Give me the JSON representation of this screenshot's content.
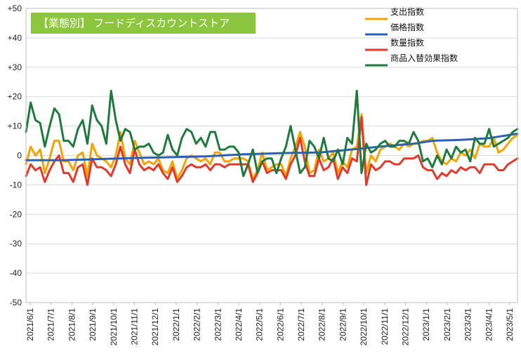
{
  "chart_data": {
    "type": "line",
    "title": "【業態別】 フードディスカウントストア",
    "title_bg": "#8cc63f",
    "ylim": [
      -50,
      50
    ],
    "yticks": [
      "+50",
      "+40",
      "+30",
      "+20",
      "+10",
      "0",
      "-10",
      "-20",
      "-30",
      "-40",
      "-50"
    ],
    "ytick_values": [
      50,
      40,
      30,
      20,
      10,
      0,
      -10,
      -20,
      -30,
      -40,
      -50
    ],
    "xlabels": [
      "2021/6/1",
      "2021/7/1",
      "2021/8/1",
      "2021/9/1",
      "2021/10/1",
      "2021/11/1",
      "2021/12/1",
      "2022/1/1",
      "2022/2/1",
      "2022/3/1",
      "2022/4/1",
      "2022/5/1",
      "2022/6/1",
      "2022/7/1",
      "2022/8/1",
      "2022/9/1",
      "2022/10/1",
      "2022/11/1",
      "2022/12/1",
      "2023/1/1",
      "2023/2/1",
      "2023/3/1",
      "2023/4/1",
      "2023/5/1"
    ],
    "n_points": 105,
    "series": [
      {
        "name": "支出指数",
        "color": "#f5a300",
        "anchors": [
          [
            0,
            -3
          ],
          [
            1,
            3
          ],
          [
            2,
            0
          ],
          [
            3,
            2
          ],
          [
            4,
            -6
          ],
          [
            5,
            -1
          ],
          [
            6,
            5
          ],
          [
            7,
            5
          ],
          [
            8,
            -2
          ],
          [
            9,
            -2
          ],
          [
            10,
            -5
          ],
          [
            11,
            0
          ],
          [
            12,
            1
          ],
          [
            13,
            -7
          ],
          [
            14,
            4
          ],
          [
            15,
            0
          ],
          [
            16,
            -1
          ],
          [
            17,
            -2
          ],
          [
            18,
            -4
          ],
          [
            19,
            0
          ],
          [
            20,
            8
          ],
          [
            21,
            -1
          ],
          [
            22,
            -3
          ],
          [
            23,
            5
          ],
          [
            24,
            1
          ],
          [
            25,
            -3
          ],
          [
            26,
            -2
          ],
          [
            27,
            -3
          ],
          [
            28,
            -1
          ],
          [
            29,
            -5
          ],
          [
            30,
            -6
          ],
          [
            31,
            -2
          ],
          [
            32,
            -8
          ],
          [
            33,
            -5
          ],
          [
            34,
            -1
          ],
          [
            35,
            0
          ],
          [
            36,
            -1
          ],
          [
            37,
            -2
          ],
          [
            38,
            -1
          ],
          [
            39,
            -3
          ],
          [
            40,
            1
          ],
          [
            41,
            1
          ],
          [
            42,
            -2
          ],
          [
            43,
            -2
          ],
          [
            44,
            -1
          ],
          [
            45,
            -1
          ],
          [
            46,
            -1
          ],
          [
            47,
            -2
          ],
          [
            48,
            -8
          ],
          [
            49,
            -5
          ],
          [
            50,
            1
          ],
          [
            51,
            -5
          ],
          [
            52,
            -4
          ],
          [
            53,
            -3
          ],
          [
            54,
            -3
          ],
          [
            55,
            -7
          ],
          [
            56,
            -1
          ],
          [
            57,
            3
          ],
          [
            58,
            8
          ],
          [
            59,
            3
          ],
          [
            60,
            -6
          ],
          [
            61,
            -5
          ],
          [
            62,
            2
          ],
          [
            63,
            -2
          ],
          [
            64,
            -1
          ],
          [
            65,
            1
          ],
          [
            66,
            -6
          ],
          [
            67,
            -2
          ],
          [
            68,
            -4
          ],
          [
            69,
            2
          ],
          [
            70,
            3
          ],
          [
            71,
            14
          ],
          [
            72,
            -6
          ],
          [
            73,
            0
          ],
          [
            74,
            -2
          ],
          [
            75,
            2
          ],
          [
            76,
            3
          ],
          [
            77,
            4
          ],
          [
            78,
            3
          ],
          [
            79,
            2
          ],
          [
            80,
            4
          ],
          [
            81,
            3
          ],
          [
            82,
            4
          ],
          [
            83,
            4
          ],
          [
            84,
            5
          ],
          [
            85,
            5
          ],
          [
            86,
            6
          ],
          [
            87,
            1
          ],
          [
            88,
            -2
          ],
          [
            89,
            -3
          ],
          [
            90,
            -1
          ],
          [
            91,
            -2
          ],
          [
            92,
            1
          ],
          [
            93,
            0
          ],
          [
            94,
            2
          ],
          [
            95,
            -1
          ],
          [
            96,
            4
          ],
          [
            97,
            3
          ],
          [
            98,
            3
          ],
          [
            99,
            6
          ],
          [
            100,
            1
          ],
          [
            101,
            2
          ],
          [
            102,
            4
          ],
          [
            103,
            6
          ],
          [
            104,
            7
          ]
        ]
      },
      {
        "name": "価格指数",
        "color": "#2e5fb8",
        "anchors": [
          [
            0,
            -1.6
          ],
          [
            8,
            -1.6
          ],
          [
            16,
            -1.2
          ],
          [
            22,
            -0.9
          ],
          [
            30,
            -0.6
          ],
          [
            38,
            -0.3
          ],
          [
            46,
            0.4
          ],
          [
            54,
            0.8
          ],
          [
            62,
            1.0
          ],
          [
            70,
            2.2
          ],
          [
            76,
            3.2
          ],
          [
            82,
            4.0
          ],
          [
            86,
            5.0
          ],
          [
            92,
            5.3
          ],
          [
            98,
            5.9
          ],
          [
            104,
            7.4
          ]
        ]
      },
      {
        "name": "数量指数",
        "color": "#e23a2a",
        "anchors": [
          [
            0,
            -7
          ],
          [
            1,
            -3
          ],
          [
            2,
            -5
          ],
          [
            3,
            -4
          ],
          [
            4,
            -9
          ],
          [
            5,
            -5
          ],
          [
            6,
            -2
          ],
          [
            7,
            0
          ],
          [
            8,
            -6
          ],
          [
            9,
            -6
          ],
          [
            10,
            -9
          ],
          [
            11,
            -4
          ],
          [
            12,
            -3
          ],
          [
            13,
            -10
          ],
          [
            14,
            -1
          ],
          [
            15,
            -4
          ],
          [
            16,
            -4
          ],
          [
            17,
            -5
          ],
          [
            18,
            -7
          ],
          [
            19,
            -3
          ],
          [
            20,
            3
          ],
          [
            21,
            -3
          ],
          [
            22,
            -6
          ],
          [
            23,
            2
          ],
          [
            24,
            -3
          ],
          [
            25,
            -5
          ],
          [
            26,
            -4
          ],
          [
            27,
            -5
          ],
          [
            28,
            -3
          ],
          [
            29,
            -6
          ],
          [
            30,
            -8
          ],
          [
            31,
            -4
          ],
          [
            32,
            -9
          ],
          [
            33,
            -7
          ],
          [
            34,
            -4
          ],
          [
            35,
            -3
          ],
          [
            36,
            -4
          ],
          [
            37,
            -4
          ],
          [
            38,
            -3
          ],
          [
            39,
            -5
          ],
          [
            40,
            -3
          ],
          [
            41,
            -3
          ],
          [
            42,
            -4
          ],
          [
            43,
            -3
          ],
          [
            44,
            -3
          ],
          [
            45,
            -3
          ],
          [
            46,
            -3
          ],
          [
            47,
            -3
          ],
          [
            48,
            -9
          ],
          [
            49,
            -6
          ],
          [
            50,
            -2
          ],
          [
            51,
            -6
          ],
          [
            52,
            -5
          ],
          [
            53,
            -5
          ],
          [
            54,
            -5
          ],
          [
            55,
            -8
          ],
          [
            56,
            -3
          ],
          [
            57,
            0
          ],
          [
            58,
            6
          ],
          [
            59,
            -2
          ],
          [
            60,
            -7
          ],
          [
            61,
            -7
          ],
          [
            62,
            -1
          ],
          [
            63,
            -5
          ],
          [
            64,
            -4
          ],
          [
            65,
            -1
          ],
          [
            66,
            -8
          ],
          [
            67,
            -4
          ],
          [
            68,
            -6
          ],
          [
            69,
            -1
          ],
          [
            70,
            -2
          ],
          [
            71,
            13
          ],
          [
            72,
            -10
          ],
          [
            73,
            -3
          ],
          [
            74,
            -5
          ],
          [
            75,
            -4
          ],
          [
            76,
            -2
          ],
          [
            77,
            -2
          ],
          [
            78,
            -3
          ],
          [
            79,
            -3
          ],
          [
            80,
            -1
          ],
          [
            81,
            -1
          ],
          [
            82,
            -1
          ],
          [
            83,
            0
          ],
          [
            84,
            -4
          ],
          [
            85,
            -5
          ],
          [
            86,
            -5
          ],
          [
            87,
            -8
          ],
          [
            88,
            -6
          ],
          [
            89,
            -7
          ],
          [
            90,
            -5
          ],
          [
            91,
            -6
          ],
          [
            92,
            -4
          ],
          [
            93,
            -5
          ],
          [
            94,
            -4
          ],
          [
            95,
            -4
          ],
          [
            96,
            -6
          ],
          [
            97,
            -3
          ],
          [
            98,
            -3
          ],
          [
            99,
            -3
          ],
          [
            100,
            -5
          ],
          [
            101,
            -5
          ],
          [
            102,
            -3
          ],
          [
            103,
            -2
          ],
          [
            104,
            -1
          ]
        ]
      },
      {
        "name": "商品入替効果指数",
        "color": "#1f7a3e",
        "anchors": [
          [
            0,
            8
          ],
          [
            1,
            18
          ],
          [
            2,
            12
          ],
          [
            3,
            11
          ],
          [
            4,
            3
          ],
          [
            5,
            10
          ],
          [
            6,
            16
          ],
          [
            7,
            14
          ],
          [
            8,
            5
          ],
          [
            9,
            5
          ],
          [
            10,
            3
          ],
          [
            11,
            9
          ],
          [
            12,
            12
          ],
          [
            13,
            4
          ],
          [
            14,
            17
          ],
          [
            15,
            12
          ],
          [
            16,
            10
          ],
          [
            17,
            4
          ],
          [
            18,
            22
          ],
          [
            19,
            12
          ],
          [
            20,
            5
          ],
          [
            21,
            9
          ],
          [
            22,
            8
          ],
          [
            23,
            2
          ],
          [
            24,
            3
          ],
          [
            25,
            3
          ],
          [
            26,
            4
          ],
          [
            27,
            1
          ],
          [
            28,
            0
          ],
          [
            29,
            1
          ],
          [
            30,
            7
          ],
          [
            31,
            2
          ],
          [
            32,
            0
          ],
          [
            33,
            6
          ],
          [
            34,
            9
          ],
          [
            35,
            8
          ],
          [
            36,
            4
          ],
          [
            37,
            6
          ],
          [
            38,
            3
          ],
          [
            39,
            8
          ],
          [
            40,
            8
          ],
          [
            41,
            2
          ],
          [
            42,
            2
          ],
          [
            43,
            3
          ],
          [
            44,
            3
          ],
          [
            45,
            1
          ],
          [
            46,
            -7
          ],
          [
            47,
            -3
          ],
          [
            48,
            2
          ],
          [
            49,
            -6
          ],
          [
            50,
            -2
          ],
          [
            51,
            -1
          ],
          [
            52,
            -1
          ],
          [
            53,
            -6
          ],
          [
            54,
            -1
          ],
          [
            55,
            3
          ],
          [
            56,
            10
          ],
          [
            57,
            2
          ],
          [
            58,
            -6
          ],
          [
            59,
            -4
          ],
          [
            60,
            5
          ],
          [
            61,
            3
          ],
          [
            62,
            -1
          ],
          [
            63,
            6
          ],
          [
            64,
            -1
          ],
          [
            65,
            -2
          ],
          [
            66,
            2
          ],
          [
            67,
            -3
          ],
          [
            68,
            6
          ],
          [
            69,
            4
          ],
          [
            70,
            22
          ],
          [
            71,
            -6
          ],
          [
            72,
            4
          ],
          [
            73,
            1
          ],
          [
            74,
            2
          ],
          [
            75,
            4
          ],
          [
            76,
            5
          ],
          [
            77,
            3
          ],
          [
            78,
            3
          ],
          [
            79,
            5
          ],
          [
            80,
            5
          ],
          [
            81,
            4
          ],
          [
            82,
            8
          ],
          [
            83,
            5
          ],
          [
            84,
            -2
          ],
          [
            85,
            -1
          ],
          [
            86,
            -4
          ],
          [
            87,
            0
          ],
          [
            88,
            -3
          ],
          [
            89,
            2
          ],
          [
            90,
            -1
          ],
          [
            91,
            3
          ],
          [
            92,
            1
          ],
          [
            93,
            2
          ],
          [
            94,
            -2
          ],
          [
            95,
            6
          ],
          [
            96,
            4
          ],
          [
            97,
            4
          ],
          [
            98,
            9
          ],
          [
            99,
            3
          ],
          [
            100,
            4
          ],
          [
            101,
            5
          ],
          [
            102,
            6
          ],
          [
            103,
            8
          ],
          [
            104,
            9
          ]
        ]
      }
    ]
  }
}
